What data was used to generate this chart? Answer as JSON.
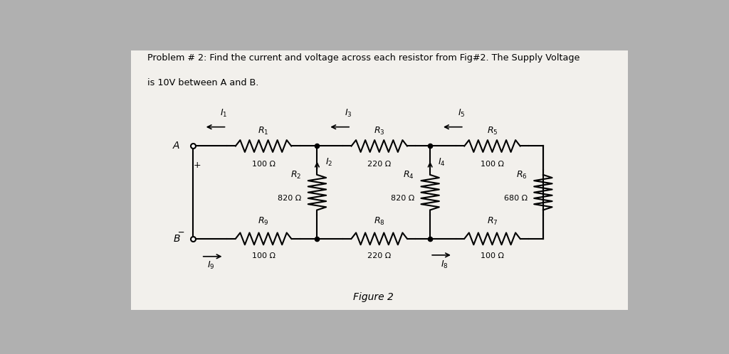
{
  "title_line1": "Problem # 2: Find the current and voltage across each resistor from Fig#2. The Supply Voltage",
  "title_line2": "is 10V between A and B.",
  "figure_label": "Figure 2",
  "bg_color": "#b0b0b0",
  "paper_color": "#f2f0ec",
  "line_color": "#000000",
  "ytop": 0.62,
  "ybot": 0.28,
  "xA": 0.18,
  "xn1": 0.4,
  "xn2": 0.6,
  "xn3": 0.8
}
